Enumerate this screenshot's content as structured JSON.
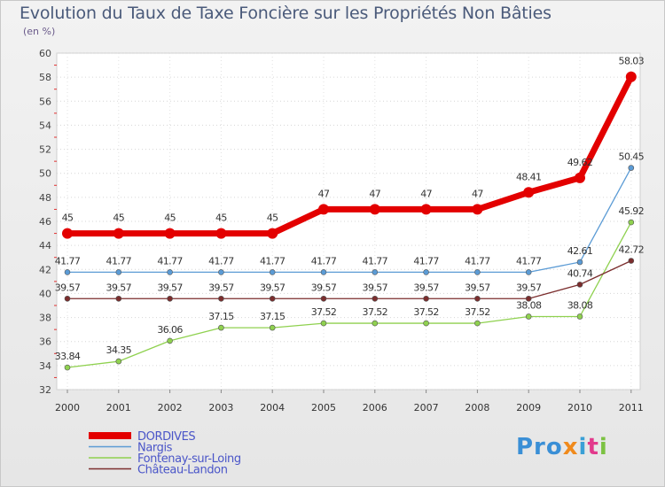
{
  "header": {
    "title": "Evolution du Taux de Taxe Foncière sur les Propriétés Non Bâties",
    "unit_note": "(en %)"
  },
  "logo": {
    "text": "Proxiti",
    "parts": [
      "Pro",
      "x",
      "i",
      "t",
      "i"
    ]
  },
  "chart_data": {
    "type": "line",
    "title": "Evolution du Taux de Taxe Foncière sur les Propriétés Non Bâties",
    "ylabel": "(en %)",
    "xlabel": "",
    "ylim": [
      32,
      60
    ],
    "yticks": [
      "32",
      "34",
      "36",
      "38",
      "40",
      "42",
      "44",
      "46",
      "48",
      "50",
      "52",
      "54",
      "56",
      "58",
      "60"
    ],
    "categories": [
      "2000",
      "2001",
      "2002",
      "2003",
      "2004",
      "2005",
      "2006",
      "2007",
      "2008",
      "2009",
      "2010",
      "2011"
    ],
    "legend_position": "bottom-left",
    "series": [
      {
        "name": "DORDIVES",
        "color": "#e30000",
        "values": [
          45,
          45,
          45,
          45,
          45,
          47,
          47,
          47,
          47,
          48.41,
          49.62,
          58.03
        ],
        "labels": [
          "45",
          "45",
          "45",
          "45",
          "45",
          "47",
          "47",
          "47",
          "47",
          "48.41",
          "49.62",
          "58.03"
        ]
      },
      {
        "name": "Nargis",
        "color": "#5b9bd5",
        "values": [
          41.77,
          41.77,
          41.77,
          41.77,
          41.77,
          41.77,
          41.77,
          41.77,
          41.77,
          41.77,
          42.61,
          50.45
        ],
        "labels": [
          "41.77",
          "41.77",
          "41.77",
          "41.77",
          "41.77",
          "41.77",
          "41.77",
          "41.77",
          "41.77",
          "41.77",
          "42.61",
          "50.45"
        ]
      },
      {
        "name": "Fontenay-sur-Loing",
        "color": "#8fd14f",
        "values": [
          33.84,
          34.35,
          36.06,
          37.15,
          37.15,
          37.52,
          37.52,
          37.52,
          37.52,
          38.08,
          38.08,
          45.92
        ],
        "labels": [
          "33.84",
          "34.35",
          "36.06",
          "37.15",
          "37.15",
          "37.52",
          "37.52",
          "37.52",
          "37.52",
          "38.08",
          "38.08",
          "45.92"
        ]
      },
      {
        "name": "Château-Landon",
        "color": "#7b2d2d",
        "values": [
          39.57,
          39.57,
          39.57,
          39.57,
          39.57,
          39.57,
          39.57,
          39.57,
          39.57,
          39.57,
          40.74,
          42.72
        ],
        "labels": [
          "39.57",
          "39.57",
          "39.57",
          "39.57",
          "39.57",
          "39.57",
          "39.57",
          "39.57",
          "39.57",
          "39.57",
          "40.74",
          "42.72"
        ]
      }
    ]
  }
}
